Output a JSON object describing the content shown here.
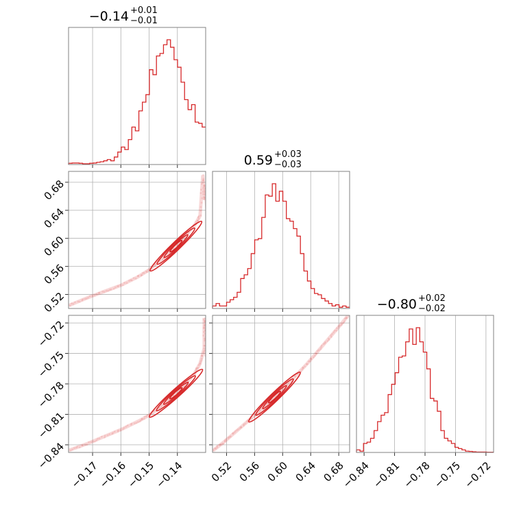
{
  "chart_data": {
    "type": "corner",
    "color": "#d62728",
    "parameters": [
      {
        "title": {
          "main": "−0.14",
          "sup": "+0.01",
          "sub": "−0.01"
        },
        "median": -0.1405,
        "range": [
          -0.1785,
          -0.13
        ],
        "ticks": [
          -0.17,
          -0.16,
          -0.15,
          -0.14
        ],
        "tick_labels": [
          "−0.17",
          "−0.16",
          "−0.15",
          "−0.14"
        ],
        "hist": [
          0.01,
          0.012,
          0.012,
          0.01,
          0.006,
          0.006,
          0.01,
          0.012,
          0.018,
          0.022,
          0.03,
          0.04,
          0.03,
          0.06,
          0.1,
          0.14,
          0.12,
          0.2,
          0.3,
          0.27,
          0.43,
          0.5,
          0.56,
          0.76,
          0.72,
          0.87,
          0.89,
          0.96,
          1.0,
          0.94,
          0.84,
          0.78,
          0.66,
          0.52,
          0.44,
          0.48,
          0.34,
          0.33,
          0.3
        ]
      },
      {
        "title": {
          "main": "0.59",
          "sup": "+0.03",
          "sub": "−0.03"
        },
        "median": 0.5885,
        "range": [
          0.5,
          0.6955
        ],
        "ticks": [
          0.52,
          0.56,
          0.6,
          0.64,
          0.68
        ],
        "tick_labels": [
          "0.52",
          "0.56",
          "0.60",
          "0.64",
          "0.68"
        ],
        "hist": [
          0.02,
          0.04,
          0.02,
          0.02,
          0.05,
          0.07,
          0.09,
          0.13,
          0.24,
          0.27,
          0.32,
          0.44,
          0.55,
          0.56,
          0.73,
          0.91,
          0.9,
          1.0,
          0.86,
          0.94,
          0.86,
          0.72,
          0.7,
          0.64,
          0.58,
          0.44,
          0.3,
          0.22,
          0.16,
          0.12,
          0.11,
          0.08,
          0.06,
          0.04,
          0.02,
          0.03,
          0.01,
          0.02,
          0.01
        ]
      },
      {
        "title": {
          "main": "−0.80",
          "sup": "+0.02",
          "sub": "−0.02"
        },
        "median": -0.7985,
        "range": [
          -0.8475,
          -0.7125
        ],
        "ticks": [
          -0.84,
          -0.81,
          -0.78,
          -0.75,
          -0.72
        ],
        "tick_labels": [
          "−0.84",
          "−0.81",
          "−0.78",
          "−0.75",
          "−0.72"
        ],
        "hist": [
          0.02,
          0.01,
          0.07,
          0.08,
          0.11,
          0.17,
          0.24,
          0.29,
          0.31,
          0.45,
          0.53,
          0.62,
          0.74,
          0.75,
          0.86,
          0.96,
          0.84,
          0.97,
          0.86,
          0.78,
          0.65,
          0.42,
          0.4,
          0.32,
          0.17,
          0.11,
          0.09,
          0.07,
          0.04,
          0.03,
          0.02,
          0.01,
          0.008,
          0.005,
          0.003,
          0.003,
          0.003,
          0.002,
          0.002
        ]
      }
    ],
    "scatter_2d": [
      {
        "x": 0,
        "y": 1,
        "data_points": [
          [
            -0.178,
            0.505
          ],
          [
            -0.172,
            0.515
          ],
          [
            -0.166,
            0.524
          ],
          [
            -0.16,
            0.533
          ],
          [
            -0.154,
            0.545
          ],
          [
            -0.15,
            0.555
          ],
          [
            -0.146,
            0.569
          ],
          [
            -0.142,
            0.583
          ],
          [
            -0.138,
            0.6
          ],
          [
            -0.134,
            0.618
          ],
          [
            -0.132,
            0.632
          ],
          [
            -0.1305,
            0.655
          ],
          [
            -0.1302,
            0.675
          ],
          [
            -0.131,
            0.69
          ],
          [
            -0.1295,
            0.64
          ]
        ]
      },
      {
        "x": 0,
        "y": 2,
        "data_points": [
          [
            -0.178,
            -0.845
          ],
          [
            -0.172,
            -0.839
          ],
          [
            -0.166,
            -0.832
          ],
          [
            -0.16,
            -0.825
          ],
          [
            -0.154,
            -0.817
          ],
          [
            -0.15,
            -0.811
          ],
          [
            -0.146,
            -0.803
          ],
          [
            -0.142,
            -0.793
          ],
          [
            -0.138,
            -0.783
          ],
          [
            -0.134,
            -0.77
          ],
          [
            -0.132,
            -0.76
          ],
          [
            -0.1305,
            -0.745
          ],
          [
            -0.1302,
            -0.73
          ],
          [
            -0.1305,
            -0.715
          ],
          [
            -0.1298,
            -0.752
          ]
        ]
      },
      {
        "x": 1,
        "y": 2,
        "data_points": [
          [
            0.502,
            -0.845
          ],
          [
            0.515,
            -0.838
          ],
          [
            0.53,
            -0.829
          ],
          [
            0.545,
            -0.82
          ],
          [
            0.56,
            -0.811
          ],
          [
            0.575,
            -0.802
          ],
          [
            0.59,
            -0.792
          ],
          [
            0.605,
            -0.782
          ],
          [
            0.62,
            -0.771
          ],
          [
            0.635,
            -0.76
          ],
          [
            0.65,
            -0.748
          ],
          [
            0.665,
            -0.736
          ],
          [
            0.68,
            -0.724
          ],
          [
            0.693,
            -0.713
          ]
        ]
      }
    ]
  }
}
